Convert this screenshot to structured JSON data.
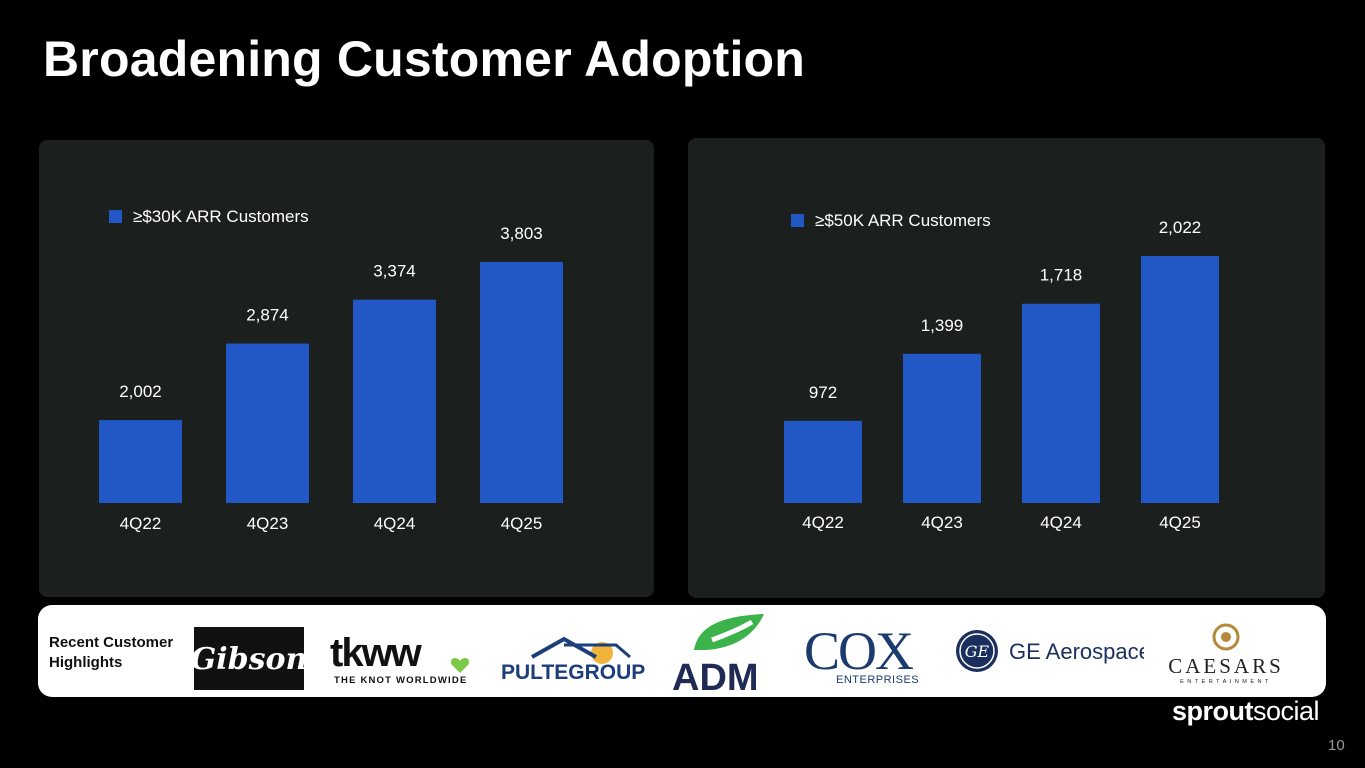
{
  "slide": {
    "title": "Broadening Customer Adoption",
    "page_number": "10",
    "brand_bold": "sprout",
    "brand_light": "social"
  },
  "colors": {
    "bar": "#2158c6",
    "panel": "#1b1f1e"
  },
  "chart_data": [
    {
      "type": "bar",
      "legend": "≥$30K ARR Customers",
      "categories": [
        "4Q22",
        "4Q23",
        "4Q24",
        "4Q25"
      ],
      "values": [
        2002,
        2874,
        3374,
        3803
      ],
      "labels": [
        "2,002",
        "2,874",
        "3,374",
        "3,803"
      ],
      "ylim": [
        1650,
        3803
      ]
    },
    {
      "type": "bar",
      "legend": "≥$50K ARR Customers",
      "categories": [
        "4Q22",
        "4Q23",
        "4Q24",
        "4Q25"
      ],
      "values": [
        972,
        1399,
        1718,
        2022
      ],
      "labels": [
        "972",
        "1,399",
        "1,718",
        "2,022"
      ],
      "ylim": [
        780,
        2022
      ]
    }
  ],
  "customers": {
    "label": "Recent Customer Highlights",
    "logos": [
      {
        "name": "Gibson",
        "text": "Gibson"
      },
      {
        "name": "tkww",
        "text": "tkww",
        "sub": "THE KNOT WORLDWIDE"
      },
      {
        "name": "PulteGroup",
        "text": "PULTEGROUP"
      },
      {
        "name": "ADM",
        "text": "ADM"
      },
      {
        "name": "Cox Enterprises",
        "text": "COX",
        "sub": "ENTERPRISES"
      },
      {
        "name": "GE Aerospace",
        "text": "GE Aerospace",
        "mono": "GE"
      },
      {
        "name": "Caesars Entertainment",
        "text": "CAESARS",
        "sub": "ENTERTAINMENT"
      }
    ]
  }
}
